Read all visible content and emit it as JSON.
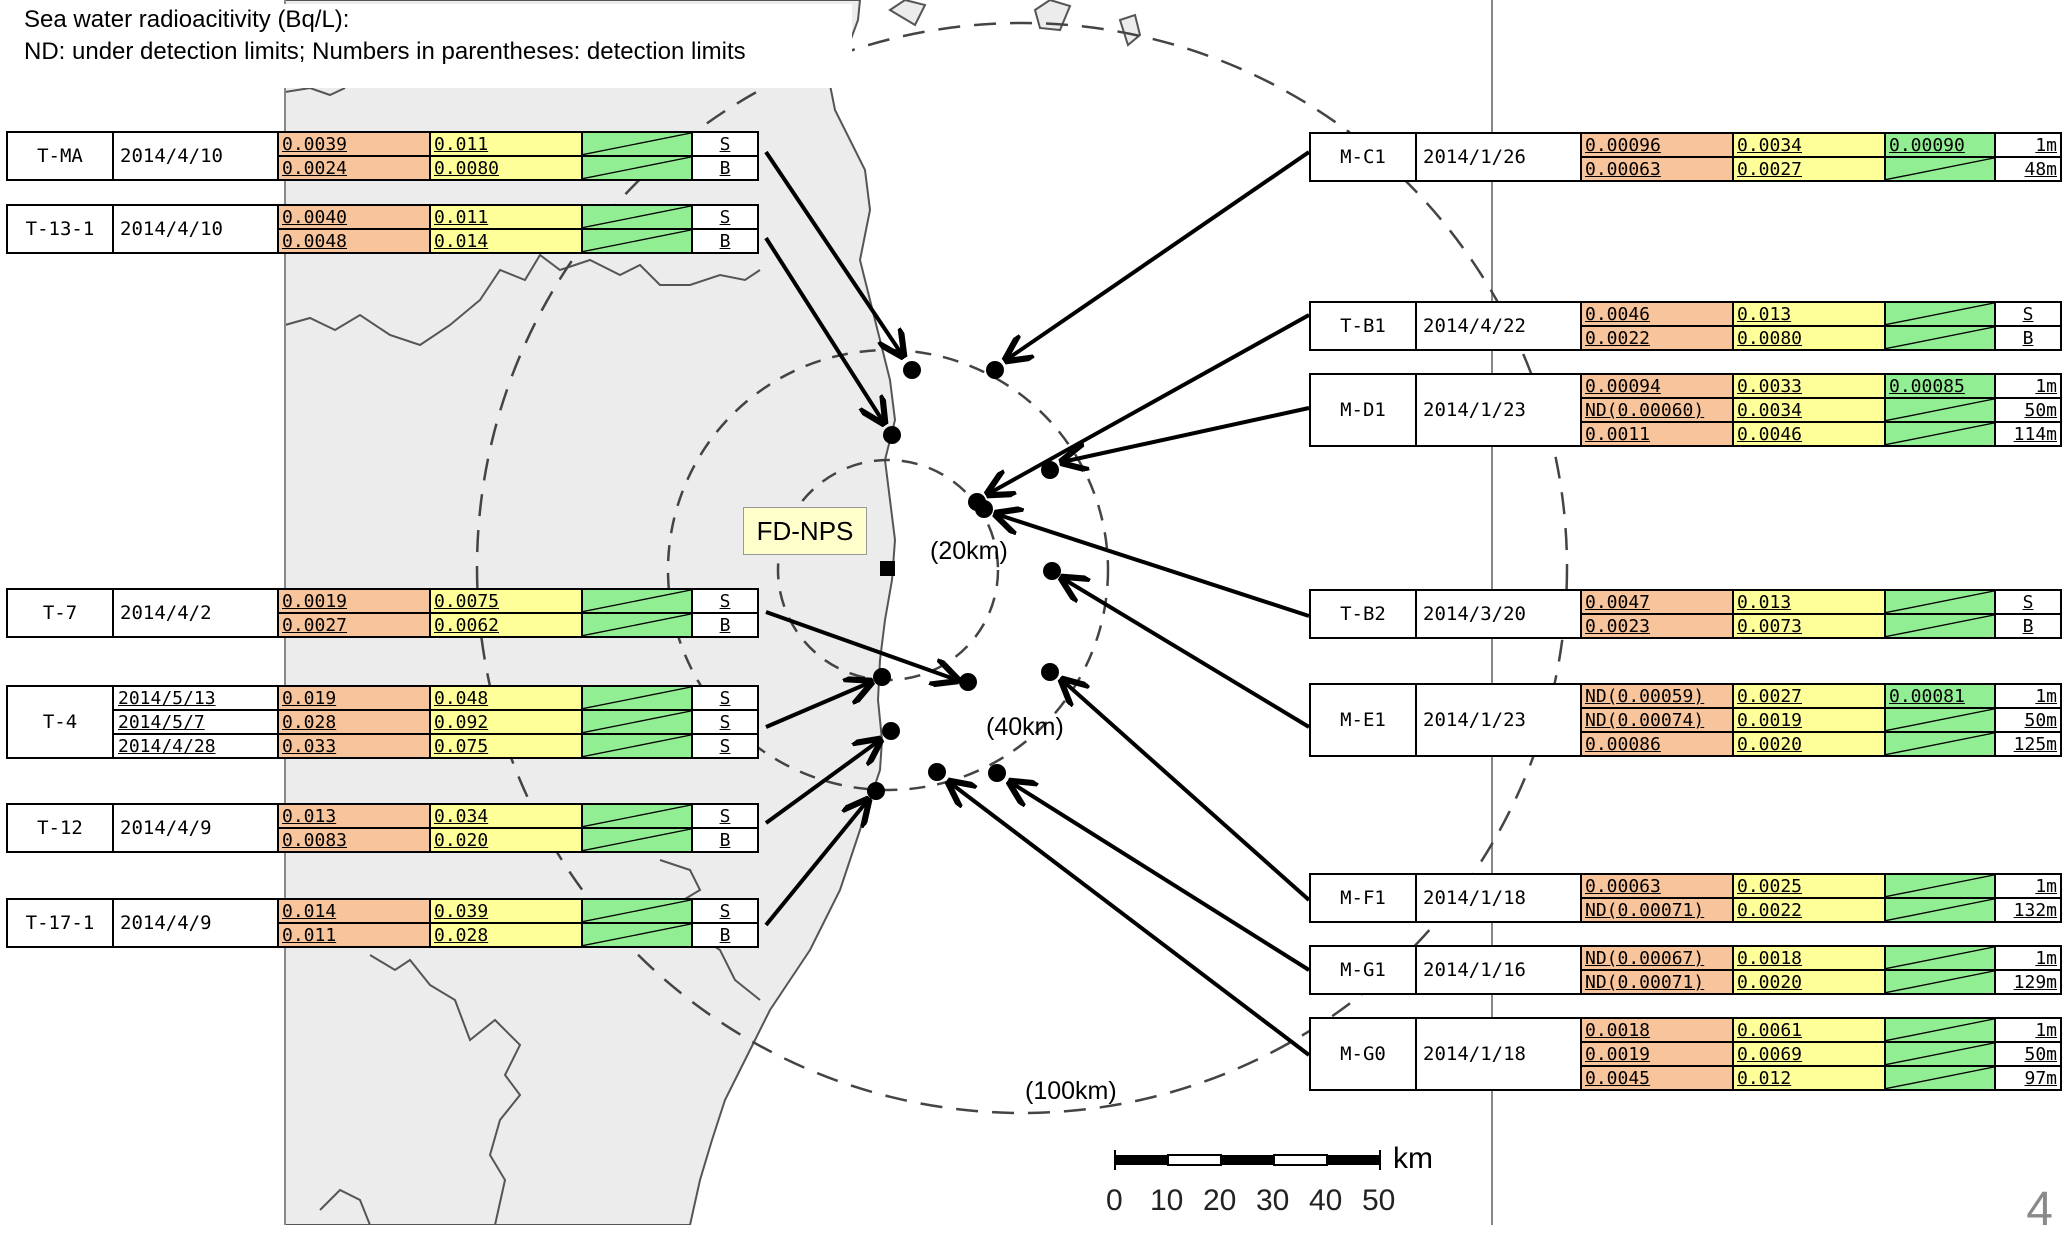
{
  "header": {
    "line1": "Sea water radioacitivity (Bq/L):",
    "line2": "ND: under detection limits;    Numbers in parentheses: detection limits"
  },
  "map": {
    "plant_label": "FD-NPS",
    "ring_labels": [
      "(20km)",
      "(40km)",
      "(100km)"
    ],
    "scale_unit": "km",
    "scale_ticks": [
      "0",
      "10",
      "20",
      "30",
      "40",
      "50"
    ],
    "colors": {
      "col1": "#f8c49b",
      "col2": "#ffff99",
      "col3": "#92ee92",
      "land": "#ececec"
    }
  },
  "page_number": "4",
  "stations_left": [
    {
      "id": "T-MA",
      "rows": [
        {
          "date": "2014/4/10",
          "v1": "0.0039",
          "v2": "0.011",
          "v3": "",
          "depth": "S"
        },
        {
          "date": "",
          "v1": "0.0024",
          "v2": "0.0080",
          "v3": "",
          "depth": "B"
        }
      ]
    },
    {
      "id": "T-13-1",
      "rows": [
        {
          "date": "2014/4/10",
          "v1": "0.0040",
          "v2": "0.011",
          "v3": "",
          "depth": "S"
        },
        {
          "date": "",
          "v1": "0.0048",
          "v2": "0.014",
          "v3": "",
          "depth": "B"
        }
      ]
    },
    {
      "id": "T-7",
      "rows": [
        {
          "date": "2014/4/2",
          "v1": "0.0019",
          "v2": "0.0075",
          "v3": "",
          "depth": "S"
        },
        {
          "date": "",
          "v1": "0.0027",
          "v2": "0.0062",
          "v3": "",
          "depth": "B"
        }
      ]
    },
    {
      "id": "T-4",
      "rows": [
        {
          "date": "2014/5/13",
          "v1": "0.019",
          "v2": "0.048",
          "v3": "",
          "depth": "S"
        },
        {
          "date": "2014/5/7",
          "v1": "0.028",
          "v2": "0.092",
          "v3": "",
          "depth": "S"
        },
        {
          "date": "2014/4/28",
          "v1": "0.033",
          "v2": "0.075",
          "v3": "",
          "depth": "S"
        }
      ]
    },
    {
      "id": "T-12",
      "rows": [
        {
          "date": "2014/4/9",
          "v1": "0.013",
          "v2": "0.034",
          "v3": "",
          "depth": "S"
        },
        {
          "date": "",
          "v1": "0.0083",
          "v2": "0.020",
          "v3": "",
          "depth": "B"
        }
      ]
    },
    {
      "id": "T-17-1",
      "rows": [
        {
          "date": "2014/4/9",
          "v1": "0.014",
          "v2": "0.039",
          "v3": "",
          "depth": "S"
        },
        {
          "date": "",
          "v1": "0.011",
          "v2": "0.028",
          "v3": "",
          "depth": "B"
        }
      ]
    }
  ],
  "stations_right": [
    {
      "id": "M-C1",
      "rows": [
        {
          "date": "2014/1/26",
          "v1": "0.00096",
          "v2": "0.0034",
          "v3": "0.00090",
          "depth": "1m"
        },
        {
          "date": "",
          "v1": "0.00063",
          "v2": "0.0027",
          "v3": "",
          "depth": "48m"
        }
      ]
    },
    {
      "id": "T-B1",
      "rows": [
        {
          "date": "2014/4/22",
          "v1": "0.0046",
          "v2": "0.013",
          "v3": "",
          "depth": "S"
        },
        {
          "date": "",
          "v1": "0.0022",
          "v2": "0.0080",
          "v3": "",
          "depth": "B"
        }
      ]
    },
    {
      "id": "M-D1",
      "rows": [
        {
          "date": "2014/1/23",
          "v1": "0.00094",
          "v2": "0.0033",
          "v3": "0.00085",
          "depth": "1m"
        },
        {
          "date": "",
          "v1": "ND(0.00060)",
          "v2": "0.0034",
          "v3": "",
          "depth": "50m"
        },
        {
          "date": "",
          "v1": "0.0011",
          "v2": "0.0046",
          "v3": "",
          "depth": "114m"
        }
      ]
    },
    {
      "id": "T-B2",
      "rows": [
        {
          "date": "2014/3/20",
          "v1": "0.0047",
          "v2": "0.013",
          "v3": "",
          "depth": "S"
        },
        {
          "date": "",
          "v1": "0.0023",
          "v2": "0.0073",
          "v3": "",
          "depth": "B"
        }
      ]
    },
    {
      "id": "M-E1",
      "rows": [
        {
          "date": "2014/1/23",
          "v1": "ND(0.00059)",
          "v2": "0.0027",
          "v3": "0.00081",
          "depth": "1m"
        },
        {
          "date": "",
          "v1": "ND(0.00074)",
          "v2": "0.0019",
          "v3": "",
          "depth": "50m"
        },
        {
          "date": "",
          "v1": "0.00086",
          "v2": "0.0020",
          "v3": "",
          "depth": "125m"
        }
      ]
    },
    {
      "id": "M-F1",
      "rows": [
        {
          "date": "2014/1/18",
          "v1": "0.00063",
          "v2": "0.0025",
          "v3": "",
          "depth": "1m"
        },
        {
          "date": "",
          "v1": "ND(0.00071)",
          "v2": "0.0022",
          "v3": "",
          "depth": "132m"
        }
      ]
    },
    {
      "id": "M-G1",
      "rows": [
        {
          "date": "2014/1/16",
          "v1": "ND(0.00067)",
          "v2": "0.0018",
          "v3": "",
          "depth": "1m"
        },
        {
          "date": "",
          "v1": "ND(0.00071)",
          "v2": "0.0020",
          "v3": "",
          "depth": "129m"
        }
      ]
    },
    {
      "id": "M-G0",
      "rows": [
        {
          "date": "2014/1/18",
          "v1": "0.0018",
          "v2": "0.0061",
          "v3": "",
          "depth": "1m"
        },
        {
          "date": "",
          "v1": "0.0019",
          "v2": "0.0069",
          "v3": "",
          "depth": "50m"
        },
        {
          "date": "",
          "v1": "0.0045",
          "v2": "0.012",
          "v3": "",
          "depth": "97m"
        }
      ]
    }
  ]
}
